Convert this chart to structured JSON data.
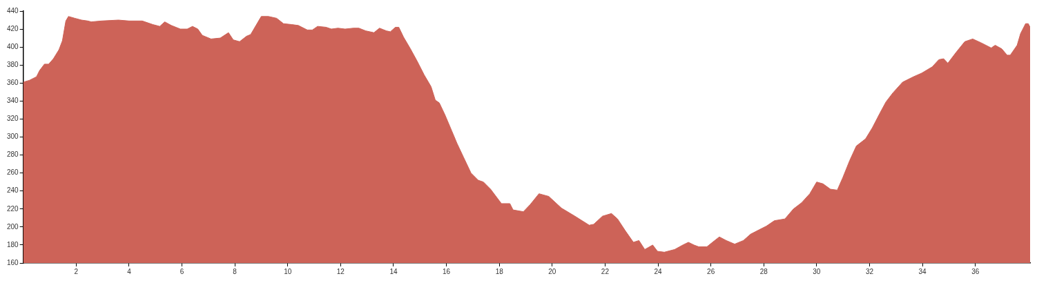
{
  "chart_data": {
    "type": "area",
    "xlim": [
      0,
      38.07
    ],
    "ylim": [
      160,
      440
    ],
    "xticks": [
      2,
      4,
      6,
      8,
      10,
      12,
      14,
      16,
      18,
      20,
      22,
      24,
      26,
      28,
      30,
      32,
      34,
      36
    ],
    "yticks": [
      160,
      180,
      200,
      220,
      240,
      260,
      280,
      300,
      320,
      340,
      360,
      380,
      400,
      420,
      440
    ],
    "series": [
      {
        "color": "#cd6358",
        "x": [
          0,
          0.23,
          0.5,
          0.62,
          0.8,
          0.96,
          1.14,
          1.35,
          1.48,
          1.61,
          1.71,
          1.95,
          2.2,
          2.44,
          2.57,
          2.96,
          3.6,
          4.0,
          4.5,
          4.9,
          5.16,
          5.35,
          5.6,
          5.94,
          6.2,
          6.4,
          6.6,
          6.77,
          7.1,
          7.45,
          7.76,
          7.94,
          8.18,
          8.44,
          8.6,
          8.8,
          9.0,
          9.27,
          9.58,
          9.84,
          10.15,
          10.4,
          10.74,
          10.93,
          11.13,
          11.45,
          11.65,
          11.9,
          12.17,
          12.48,
          12.69,
          12.95,
          13.26,
          13.47,
          13.73,
          13.88,
          14.07,
          14.2,
          14.38,
          14.64,
          14.9,
          15.16,
          15.42,
          15.58,
          15.73,
          15.94,
          16.2,
          16.4,
          16.64,
          16.93,
          17.2,
          17.4,
          17.67,
          18.08,
          18.4,
          18.52,
          18.91,
          19.17,
          19.5,
          19.87,
          20.35,
          20.86,
          21.4,
          21.57,
          21.9,
          22.24,
          22.47,
          22.76,
          23.07,
          23.28,
          23.5,
          23.8,
          23.98,
          24.24,
          24.63,
          24.94,
          25.15,
          25.36,
          25.54,
          25.85,
          26.06,
          26.32,
          26.58,
          26.9,
          27.23,
          27.5,
          27.83,
          28.1,
          28.4,
          28.8,
          29.12,
          29.43,
          29.74,
          30.0,
          30.24,
          30.52,
          30.78,
          30.99,
          31.25,
          31.5,
          31.85,
          32.1,
          32.4,
          32.62,
          32.88,
          33.25,
          33.66,
          33.97,
          34.37,
          34.62,
          34.8,
          34.96,
          35.27,
          35.6,
          35.9,
          36.2,
          36.6,
          36.75,
          37.0,
          37.2,
          37.32,
          37.58,
          37.71,
          37.9,
          38.0,
          38.07
        ],
        "values": [
          361,
          363,
          367,
          374,
          381,
          381,
          387,
          397,
          407,
          429,
          434,
          432,
          430,
          429,
          428,
          429,
          430,
          429,
          429,
          425,
          423,
          428,
          424,
          420,
          420,
          423,
          420,
          413,
          409,
          410,
          416,
          408,
          406,
          412,
          414,
          424,
          434,
          434,
          432,
          426,
          425,
          424,
          419,
          419,
          423,
          422,
          420,
          421,
          420,
          421,
          421,
          418,
          416,
          421,
          418,
          417,
          422,
          422,
          411,
          398,
          384,
          369,
          356,
          341,
          338,
          325,
          307,
          293,
          278,
          260,
          252,
          250,
          242,
          226,
          226,
          219,
          217,
          225,
          237,
          234,
          221,
          212,
          202,
          203,
          212,
          215,
          209,
          196,
          183,
          185,
          175,
          180,
          173,
          172,
          175,
          180,
          183,
          180,
          178,
          178,
          183,
          189,
          185,
          181,
          185,
          192,
          197,
          201,
          207,
          209,
          220,
          227,
          237,
          250,
          248,
          242,
          241,
          255,
          274,
          290,
          298,
          310,
          327,
          339,
          349,
          361,
          367,
          371,
          378,
          386,
          387,
          382,
          394,
          406,
          409,
          405,
          399,
          402,
          398,
          391,
          391,
          402,
          415,
          426,
          426,
          422
        ]
      }
    ]
  }
}
